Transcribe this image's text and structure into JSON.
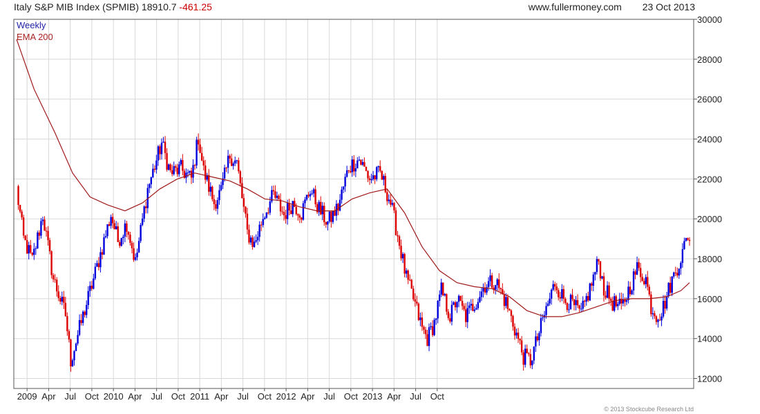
{
  "header": {
    "title": "Italy S&P MIB Index (SPMIB)",
    "last": "18910.7",
    "change": "-461.25",
    "site": "www.fullermoney.com",
    "date": "23 Oct 2013"
  },
  "copyright": "© 2013 Stockcube Research Ltd",
  "colors": {
    "up": "#0000dd",
    "down": "#dd0000",
    "ema": "#a01818",
    "grid": "#d8d8d8"
  },
  "chart_data": {
    "type": "candlestick",
    "legend": [
      "Weekly",
      "EMA 200"
    ],
    "legend_position": "top-left",
    "y_axis_side": "right",
    "ylim": [
      11500,
      30000
    ],
    "yticks": [
      12000,
      14000,
      16000,
      18000,
      20000,
      22000,
      24000,
      26000,
      28000,
      30000
    ],
    "xticks": [
      "2009",
      "Apr",
      "Jul",
      "Oct",
      "2010",
      "Apr",
      "Jul",
      "Oct",
      "2011",
      "Apr",
      "Jul",
      "Oct",
      "2012",
      "Apr",
      "Jul",
      "Oct",
      "2013",
      "Apr",
      "Jul",
      "Oct"
    ],
    "grid": true,
    "price_path": [
      [
        0,
        21500
      ],
      [
        4,
        19000
      ],
      [
        9,
        17900
      ],
      [
        15,
        20200
      ],
      [
        21,
        17000
      ],
      [
        28,
        15200
      ],
      [
        31,
        12900
      ],
      [
        36,
        14500
      ],
      [
        46,
        17600
      ],
      [
        54,
        20200
      ],
      [
        58,
        18900
      ],
      [
        63,
        19800
      ],
      [
        68,
        17800
      ],
      [
        75,
        21500
      ],
      [
        83,
        23800
      ],
      [
        88,
        22300
      ],
      [
        94,
        22500
      ],
      [
        100,
        22000
      ],
      [
        104,
        24100
      ],
      [
        107,
        22400
      ],
      [
        113,
        20800
      ],
      [
        117,
        21400
      ],
      [
        122,
        23200
      ],
      [
        126,
        22800
      ],
      [
        132,
        19300
      ],
      [
        136,
        18700
      ],
      [
        141,
        20100
      ],
      [
        147,
        21200
      ],
      [
        153,
        20200
      ],
      [
        158,
        20800
      ],
      [
        163,
        20300
      ],
      [
        168,
        21500
      ],
      [
        173,
        20500
      ],
      [
        178,
        19800
      ],
      [
        184,
        20600
      ],
      [
        190,
        22600
      ],
      [
        196,
        23000
      ],
      [
        202,
        22000
      ],
      [
        208,
        22300
      ],
      [
        214,
        20800
      ],
      [
        218,
        19200
      ],
      [
        223,
        17000
      ],
      [
        227,
        16000
      ],
      [
        232,
        14500
      ],
      [
        235,
        14000
      ],
      [
        239,
        14800
      ],
      [
        243,
        16400
      ],
      [
        248,
        15100
      ],
      [
        252,
        16000
      ],
      [
        257,
        15100
      ],
      [
        263,
        15900
      ],
      [
        268,
        16700
      ],
      [
        274,
        16900
      ],
      [
        280,
        15800
      ],
      [
        285,
        14500
      ],
      [
        290,
        13100
      ],
      [
        294,
        12900
      ],
      [
        298,
        14000
      ],
      [
        302,
        15200
      ],
      [
        308,
        16800
      ],
      [
        313,
        16000
      ],
      [
        318,
        15700
      ],
      [
        323,
        15200
      ],
      [
        328,
        16500
      ],
      [
        333,
        17900
      ],
      [
        336,
        16500
      ],
      [
        341,
        15800
      ],
      [
        346,
        15500
      ],
      [
        350,
        16400
      ],
      [
        355,
        17500
      ],
      [
        360,
        17000
      ],
      [
        363,
        15600
      ],
      [
        366,
        15200
      ],
      [
        369,
        15300
      ],
      [
        374,
        16700
      ],
      [
        378,
        17600
      ],
      [
        381,
        18300
      ],
      [
        384,
        19200
      ],
      [
        385,
        18910
      ]
    ],
    "ema200": [
      [
        0,
        29000
      ],
      [
        10,
        26500
      ],
      [
        22,
        24300
      ],
      [
        32,
        22300
      ],
      [
        42,
        21100
      ],
      [
        52,
        20700
      ],
      [
        62,
        20400
      ],
      [
        72,
        20800
      ],
      [
        82,
        21500
      ],
      [
        92,
        22000
      ],
      [
        102,
        22300
      ],
      [
        112,
        22100
      ],
      [
        122,
        21900
      ],
      [
        132,
        21500
      ],
      [
        142,
        21000
      ],
      [
        152,
        20900
      ],
      [
        162,
        20600
      ],
      [
        172,
        20400
      ],
      [
        182,
        20400
      ],
      [
        192,
        21000
      ],
      [
        202,
        21300
      ],
      [
        212,
        21500
      ],
      [
        222,
        20300
      ],
      [
        232,
        18600
      ],
      [
        242,
        17400
      ],
      [
        252,
        16800
      ],
      [
        262,
        16600
      ],
      [
        272,
        16500
      ],
      [
        282,
        16100
      ],
      [
        292,
        15400
      ],
      [
        302,
        15100
      ],
      [
        312,
        15100
      ],
      [
        322,
        15300
      ],
      [
        332,
        15600
      ],
      [
        342,
        15900
      ],
      [
        352,
        16000
      ],
      [
        362,
        16000
      ],
      [
        372,
        16100
      ],
      [
        380,
        16400
      ],
      [
        385,
        16800
      ]
    ]
  }
}
